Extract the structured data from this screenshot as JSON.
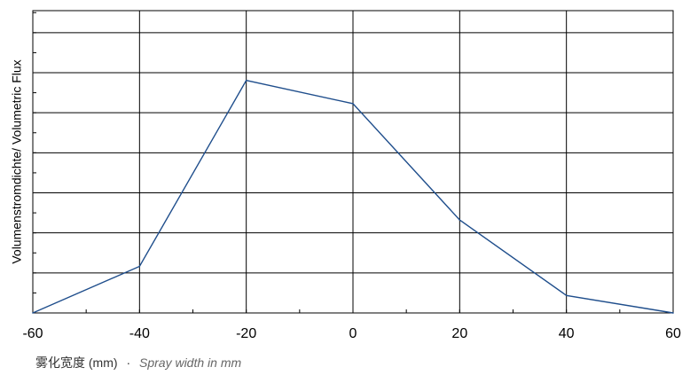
{
  "chart_data": {
    "type": "line",
    "title": "",
    "xlabel_cn": "雾化宽度 (mm)",
    "xlabel_sep": "·",
    "xlabel_en": "Spray width in mm",
    "ylabel": "Volumenstromdichte/ Volumetric Flux",
    "x": [
      -60,
      -40,
      -20,
      0,
      20,
      40,
      60
    ],
    "xticks": [
      "-60",
      "-40",
      "-20",
      "0",
      "20",
      "40",
      "60"
    ],
    "xlim": [
      -60,
      60
    ],
    "ylim": [
      0,
      13
    ],
    "ytick_count": 7,
    "grid": true,
    "series": [
      {
        "values": [
          0,
          2,
          10,
          9,
          4,
          0.75,
          0
        ]
      }
    ],
    "colors": {
      "line": "#1f4e8c",
      "grid": "#000000",
      "text": "#000000"
    }
  }
}
